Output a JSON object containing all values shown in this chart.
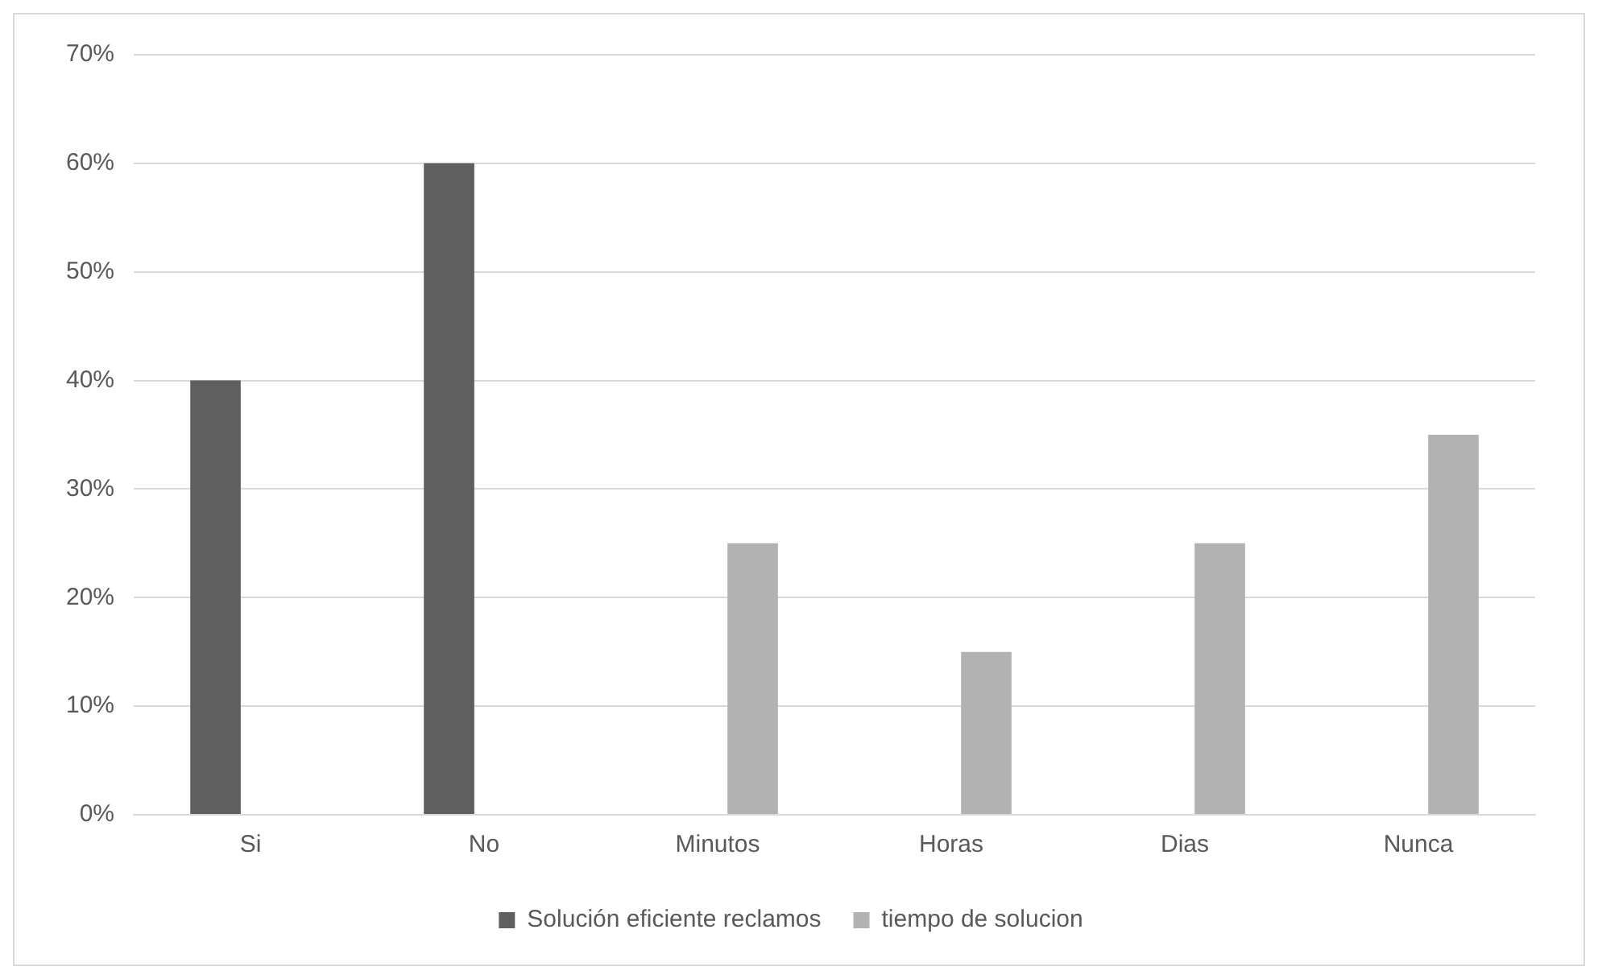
{
  "chart_data": {
    "type": "bar",
    "categories": [
      "Si",
      "No",
      "Minutos",
      "Horas",
      "Dias",
      "Nunca"
    ],
    "series": [
      {
        "name": "Solución eficiente reclamos",
        "color": "#5f5f5f",
        "values": [
          40,
          60,
          null,
          null,
          null,
          null
        ]
      },
      {
        "name": "tiempo de solucion",
        "color": "#b2b2b2",
        "values": [
          null,
          null,
          25,
          15,
          25,
          35
        ]
      }
    ],
    "ylim": [
      0,
      70
    ],
    "yticks": [
      {
        "value": 0,
        "label": "0%"
      },
      {
        "value": 10,
        "label": "10%"
      },
      {
        "value": 20,
        "label": "20%"
      },
      {
        "value": 30,
        "label": "30%"
      },
      {
        "value": 40,
        "label": "40%"
      },
      {
        "value": 50,
        "label": "50%"
      },
      {
        "value": 60,
        "label": "60%"
      },
      {
        "value": 70,
        "label": "70%"
      }
    ],
    "grid": "y",
    "legend": "bottom"
  }
}
